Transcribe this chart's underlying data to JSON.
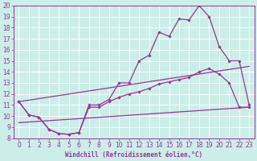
{
  "xlabel": "Windchill (Refroidissement éolien,°C)",
  "bg_color": "#cceee8",
  "line_color": "#993399",
  "xlim": [
    -0.5,
    23.5
  ],
  "ylim": [
    8,
    20
  ],
  "yticks": [
    8,
    9,
    10,
    11,
    12,
    13,
    14,
    15,
    16,
    17,
    18,
    19,
    20
  ],
  "xticks": [
    0,
    1,
    2,
    3,
    4,
    5,
    6,
    7,
    8,
    9,
    10,
    11,
    12,
    13,
    14,
    15,
    16,
    17,
    18,
    19,
    20,
    21,
    22,
    23
  ],
  "line1_x": [
    0,
    1,
    2,
    3,
    4,
    5,
    6,
    7,
    8,
    9,
    10,
    11,
    12,
    13,
    14,
    15,
    16,
    17,
    18,
    19,
    20,
    21,
    22,
    23
  ],
  "line1_y": [
    11.3,
    10.1,
    9.9,
    8.8,
    8.4,
    8.35,
    8.5,
    11.0,
    11.0,
    11.5,
    13.0,
    13.0,
    15.0,
    15.5,
    17.6,
    17.2,
    18.8,
    18.7,
    20.0,
    19.0,
    16.3,
    15.0,
    15.0,
    11.0
  ],
  "line2_x": [
    0,
    1,
    2,
    3,
    4,
    5,
    6,
    7,
    8,
    9,
    10,
    11,
    12,
    13,
    14,
    15,
    16,
    17,
    18,
    19,
    20,
    21,
    22,
    23
  ],
  "line2_y": [
    11.3,
    10.1,
    9.9,
    8.8,
    8.4,
    8.35,
    8.5,
    10.8,
    10.8,
    11.3,
    11.7,
    12.0,
    12.2,
    12.5,
    12.9,
    13.1,
    13.3,
    13.5,
    14.0,
    14.3,
    13.8,
    13.0,
    10.8,
    10.8
  ],
  "line3_x": [
    0,
    23
  ],
  "line3_y": [
    9.4,
    10.8
  ],
  "line4_x": [
    0,
    23
  ],
  "line4_y": [
    11.3,
    14.5
  ],
  "tick_fontsize": 5.5,
  "xlabel_fontsize": 5.5
}
